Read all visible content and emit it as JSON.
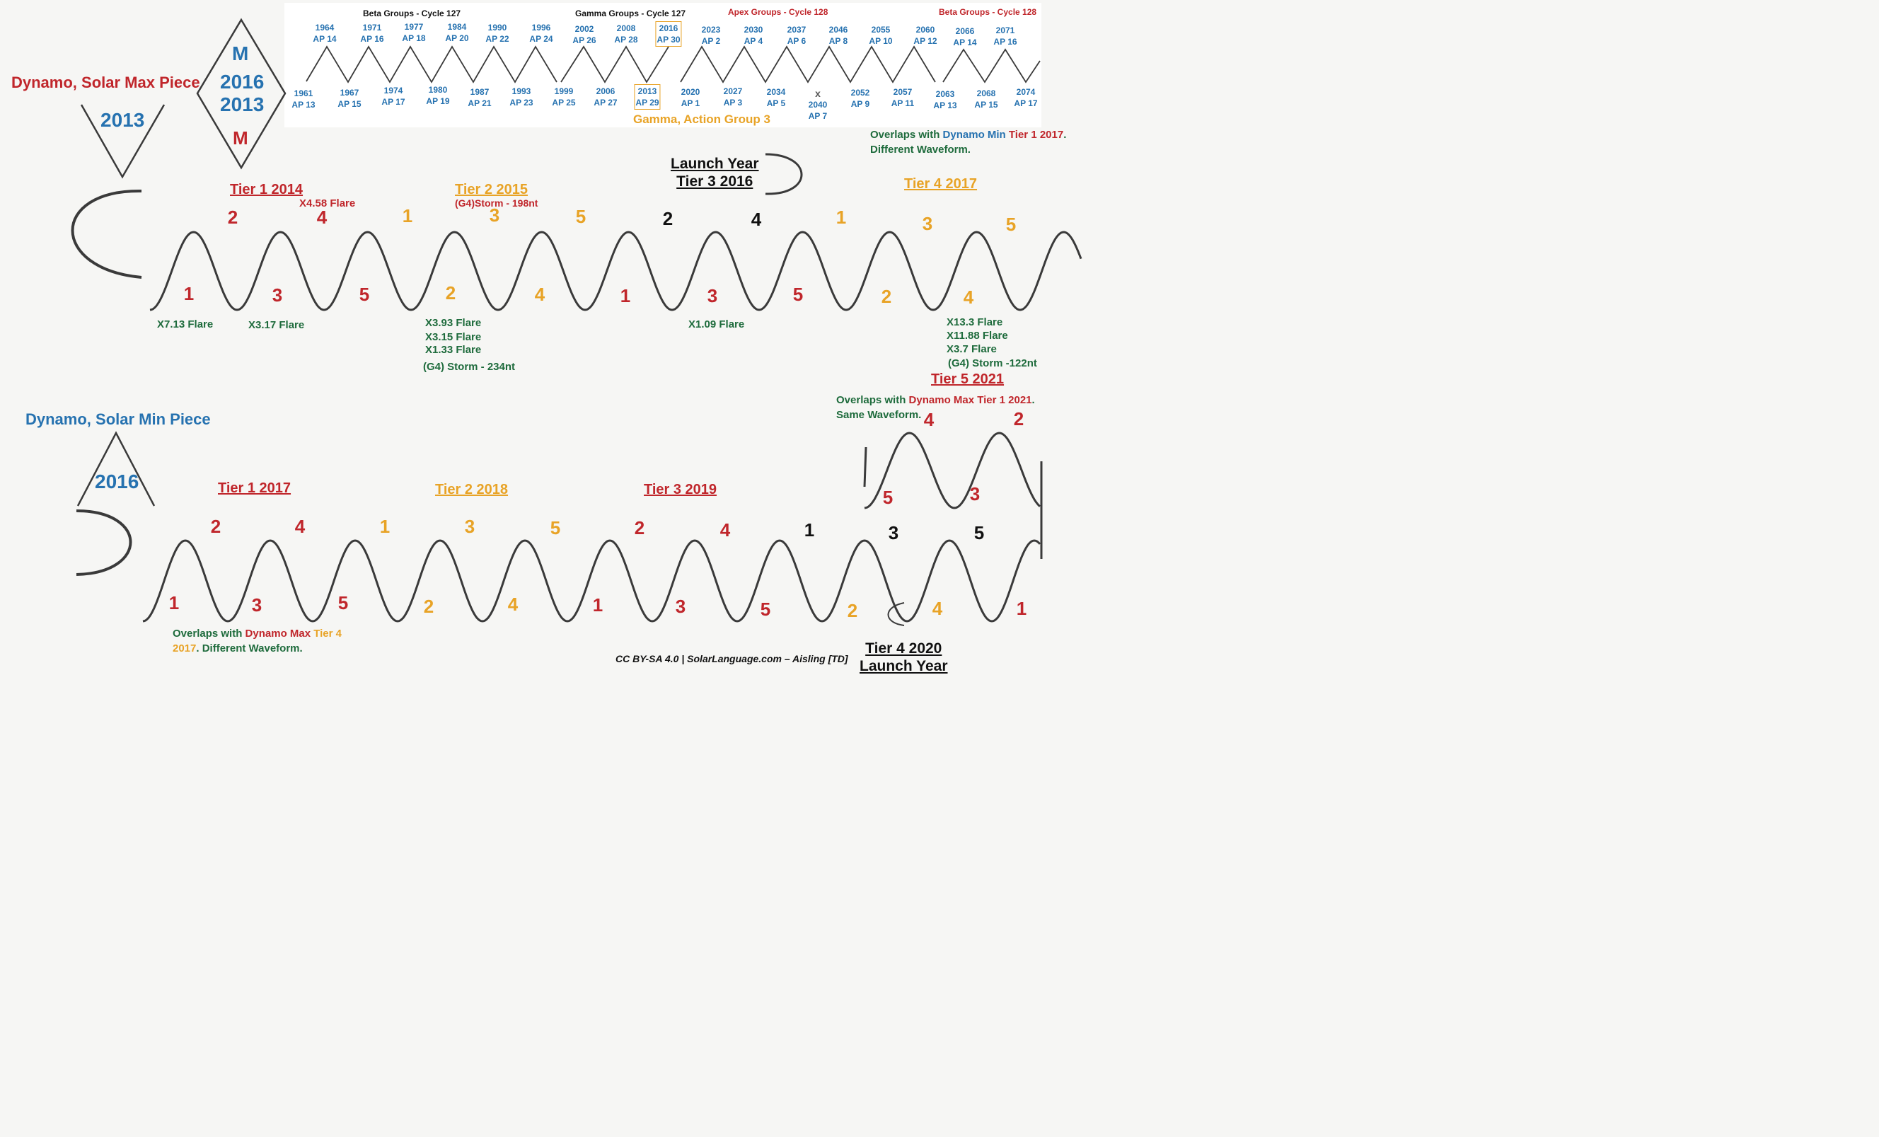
{
  "solar_max": {
    "title": "Dynamo, Solar Max Piece",
    "triangle_year": "2013",
    "diamond": {
      "top": "M",
      "line1": "2016",
      "line2": "2013",
      "bottom": "M"
    }
  },
  "solar_min": {
    "title": "Dynamo, Solar Min Piece",
    "triangle_year": "2016"
  },
  "cycle_headers": {
    "beta127": "Beta Groups - Cycle 127",
    "gamma127": "Gamma Groups - Cycle 127",
    "apex128": "Apex Groups - Cycle 128",
    "beta128": "Beta Groups - Cycle 128"
  },
  "ap_top": [
    {
      "year": "1964",
      "ap": "AP 14"
    },
    {
      "year": "1971",
      "ap": "AP 16"
    },
    {
      "year": "1977",
      "ap": "AP 18"
    },
    {
      "year": "1984",
      "ap": "AP 20"
    },
    {
      "year": "1990",
      "ap": "AP 22"
    },
    {
      "year": "1996",
      "ap": "AP 24"
    },
    {
      "year": "2002",
      "ap": "AP 26"
    },
    {
      "year": "2008",
      "ap": "AP 28"
    },
    {
      "year": "2016",
      "ap": "AP 30"
    },
    {
      "year": "2023",
      "ap": "AP 2"
    },
    {
      "year": "2030",
      "ap": "AP 4"
    },
    {
      "year": "2037",
      "ap": "AP 6"
    },
    {
      "year": "2046",
      "ap": "AP 8"
    },
    {
      "year": "2055",
      "ap": "AP 10"
    },
    {
      "year": "2060",
      "ap": "AP 12"
    },
    {
      "year": "2066",
      "ap": "AP 14"
    },
    {
      "year": "2071",
      "ap": "AP 16"
    }
  ],
  "ap_bottom": [
    {
      "year": "1961",
      "ap": "AP 13"
    },
    {
      "year": "1967",
      "ap": "AP 15"
    },
    {
      "year": "1974",
      "ap": "AP 17"
    },
    {
      "year": "1980",
      "ap": "AP 19"
    },
    {
      "year": "1987",
      "ap": "AP 21"
    },
    {
      "year": "1993",
      "ap": "AP 23"
    },
    {
      "year": "1999",
      "ap": "AP 25"
    },
    {
      "year": "2006",
      "ap": "AP 27"
    },
    {
      "year": "2013",
      "ap": "AP 29"
    },
    {
      "year": "2020",
      "ap": "AP 1"
    },
    {
      "year": "2027",
      "ap": "AP 3"
    },
    {
      "year": "2034",
      "ap": "AP 5"
    },
    {
      "mark": "x",
      "year": "2040",
      "ap": "AP 7"
    },
    {
      "year": "2052",
      "ap": "AP 9"
    },
    {
      "year": "2057",
      "ap": "AP 11"
    },
    {
      "year": "2063",
      "ap": "AP 13"
    },
    {
      "year": "2068",
      "ap": "AP 15"
    },
    {
      "year": "2074",
      "ap": "AP 17"
    }
  ],
  "gamma_action": "Gamma, Action Group 3",
  "max_row": {
    "tiers": [
      "Tier 1 2014",
      "Tier 2 2015",
      "Tier 3 2016",
      "Tier 4 2017",
      "Tier 5 2021"
    ],
    "launch_year": "Launch Year",
    "numbers": [
      {
        "n": "1",
        "c": "red"
      },
      {
        "n": "2",
        "c": "red"
      },
      {
        "n": "3",
        "c": "red"
      },
      {
        "n": "4",
        "c": "red"
      },
      {
        "n": "5",
        "c": "red"
      },
      {
        "n": "1",
        "c": "orange"
      },
      {
        "n": "2",
        "c": "orange"
      },
      {
        "n": "3",
        "c": "orange"
      },
      {
        "n": "4",
        "c": "orange"
      },
      {
        "n": "5",
        "c": "orange"
      },
      {
        "n": "1",
        "c": "red"
      },
      {
        "n": "2",
        "c": "black"
      },
      {
        "n": "3",
        "c": "red"
      },
      {
        "n": "4",
        "c": "black"
      },
      {
        "n": "5",
        "c": "red"
      },
      {
        "n": "1",
        "c": "orange"
      },
      {
        "n": "2",
        "c": "orange"
      },
      {
        "n": "3",
        "c": "orange"
      },
      {
        "n": "4",
        "c": "orange"
      },
      {
        "n": "5",
        "c": "orange"
      }
    ],
    "peak_events": {
      "x458": "X4.58 Flare",
      "storm198": "(G4)Storm - 198nt"
    },
    "flares": {
      "x713": "X7.13 Flare",
      "x317": "X3.17 Flare",
      "x393": "X3.93 Flare",
      "x315": "X3.15 Flare",
      "x133": "X1.33 Flare",
      "storm234": "(G4) Storm - 234nt",
      "x109": "X1.09 Flare",
      "x133b": "X13.3 Flare",
      "x1188": "X11.88 Flare",
      "x37": "X3.7 Flare",
      "storm122": "(G4) Storm -122nt"
    },
    "overlap_note": {
      "a": "Overlaps with ",
      "b": "Dynamo Min",
      "c": " ",
      "d": "Tier 1 2017",
      "e": ".",
      "line2": "Different Waveform."
    },
    "tier5_note": {
      "a": "Overlaps with ",
      "b": "Dynamo Max Tier 1 2021",
      "c": ".",
      "line2": "Same Waveform."
    },
    "tier5_numbers": [
      {
        "n": "5",
        "c": "red"
      },
      {
        "n": "4",
        "c": "red"
      },
      {
        "n": "3",
        "c": "red"
      },
      {
        "n": "2",
        "c": "red"
      }
    ]
  },
  "min_row": {
    "tiers": [
      "Tier 1 2017",
      "Tier 2 2018",
      "Tier 3 2019",
      "Tier 4 2020"
    ],
    "launch_year": "Launch Year",
    "numbers": [
      {
        "n": "1",
        "c": "red"
      },
      {
        "n": "2",
        "c": "red"
      },
      {
        "n": "3",
        "c": "red"
      },
      {
        "n": "4",
        "c": "red"
      },
      {
        "n": "5",
        "c": "red"
      },
      {
        "n": "1",
        "c": "orange"
      },
      {
        "n": "2",
        "c": "orange"
      },
      {
        "n": "3",
        "c": "orange"
      },
      {
        "n": "4",
        "c": "orange"
      },
      {
        "n": "5",
        "c": "orange"
      },
      {
        "n": "1",
        "c": "red"
      },
      {
        "n": "2",
        "c": "red"
      },
      {
        "n": "3",
        "c": "red"
      },
      {
        "n": "4",
        "c": "red"
      },
      {
        "n": "5",
        "c": "red"
      },
      {
        "n": "1",
        "c": "black"
      },
      {
        "n": "2",
        "c": "orange"
      },
      {
        "n": "3",
        "c": "black"
      },
      {
        "n": "4",
        "c": "orange"
      },
      {
        "n": "5",
        "c": "black"
      },
      {
        "n": "1",
        "c": "red"
      }
    ],
    "overlap_note": {
      "a": "Overlaps with ",
      "b": "Dynamo Max",
      "c": " ",
      "d": "Tier 4",
      "line2a": "2017",
      "line2b": ". Different Waveform."
    }
  },
  "credit": "CC BY-SA 4.0 | SolarLanguage.com – Aisling [TD]",
  "colors": {
    "red": "#c0262b",
    "blue": "#2672b0",
    "orange": "#e8a326",
    "green": "#1e6b3c",
    "ink": "#3a3a3a"
  }
}
